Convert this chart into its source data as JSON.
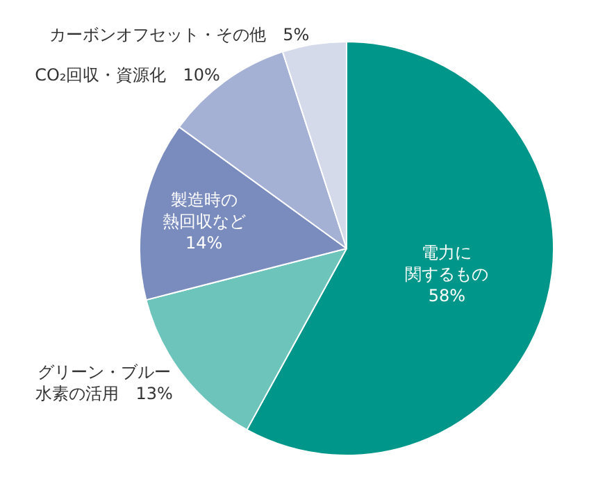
{
  "chart_data": {
    "type": "pie",
    "categories": [
      "電力に関するもの",
      "グリーン・ブルー水素の活用",
      "製造時の熱回収など",
      "CO₂回収・資源化",
      "カーボンオフセット・その他"
    ],
    "values": [
      58,
      13,
      14,
      10,
      5
    ],
    "value_labels": [
      "58%",
      "13%",
      "14%",
      "10%",
      "5%"
    ],
    "colors": [
      "#00968a",
      "#6cc4bb",
      "#7a8bbe",
      "#a4b0d4",
      "#d4daea"
    ],
    "legend": false
  }
}
